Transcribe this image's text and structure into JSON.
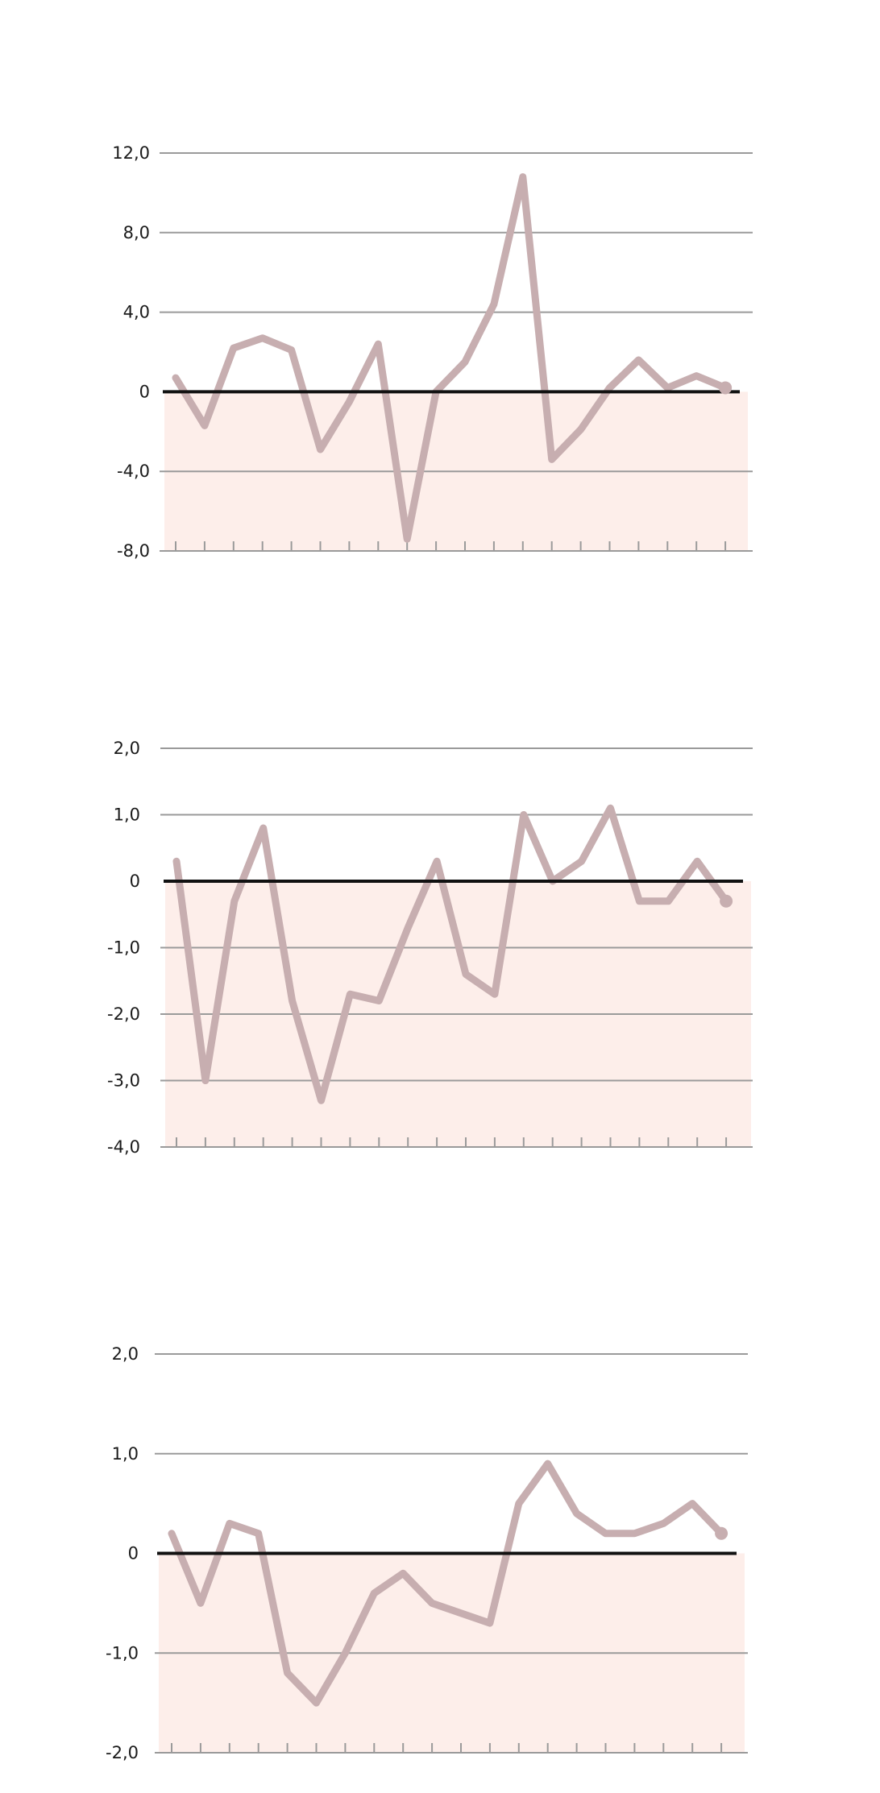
{
  "colors": {
    "line": "#c7aeb0",
    "negative_band": "#fdeeea",
    "grid": "#9a9a9a",
    "zero_line": "#111111",
    "label": "#1a1a1a"
  },
  "chart_data": [
    {
      "type": "line",
      "title": "",
      "xlabel": "",
      "ylabel": "",
      "grid": true,
      "ylim": [
        -8,
        12
      ],
      "y_tick_values": [
        12,
        8,
        4,
        0,
        -4,
        -8
      ],
      "y_tick_labels": [
        "12,0",
        "8,0",
        "4,0",
        "0",
        "-4,0",
        "-8,0"
      ],
      "x_tick_count": 20,
      "series": [
        {
          "values": [
            0.7,
            -1.7,
            2.2,
            2.7,
            2.1,
            -2.9,
            -0.5,
            2.4,
            -7.4,
            0.0,
            1.5,
            4.4,
            10.8,
            -3.4,
            -1.9,
            0.2,
            1.6,
            0.2,
            0.8,
            0.2
          ]
        }
      ]
    },
    {
      "type": "line",
      "title": "",
      "xlabel": "",
      "ylabel": "",
      "grid": true,
      "ylim": [
        -4,
        2
      ],
      "y_tick_values": [
        2,
        1,
        0,
        -1,
        -2,
        -3,
        -4
      ],
      "y_tick_labels": [
        "2,0",
        "1,0",
        "0",
        "-1,0",
        "-2,0",
        "-3,0",
        "-4,0"
      ],
      "x_tick_count": 20,
      "series": [
        {
          "values": [
            0.3,
            -3.0,
            -0.3,
            0.8,
            -1.8,
            -3.3,
            -1.7,
            -1.8,
            -0.7,
            0.3,
            -1.4,
            -1.7,
            1.0,
            0.0,
            0.3,
            1.1,
            -0.3,
            -0.3,
            0.3,
            -0.3
          ]
        }
      ]
    },
    {
      "type": "line",
      "title": "",
      "xlabel": "",
      "ylabel": "",
      "grid": true,
      "ylim": [
        -2,
        2
      ],
      "y_tick_values": [
        2,
        1,
        0,
        -1,
        -2
      ],
      "y_tick_labels": [
        "2,0",
        "1,0",
        "0",
        "-1,0",
        "-2,0"
      ],
      "x_tick_count": 20,
      "series": [
        {
          "values": [
            0.2,
            -0.5,
            0.3,
            0.2,
            -1.2,
            -1.5,
            -1.0,
            -0.4,
            -0.2,
            -0.5,
            -0.6,
            -0.7,
            0.5,
            0.9,
            0.4,
            0.2,
            0.2,
            0.3,
            0.5,
            0.2
          ]
        }
      ]
    }
  ]
}
